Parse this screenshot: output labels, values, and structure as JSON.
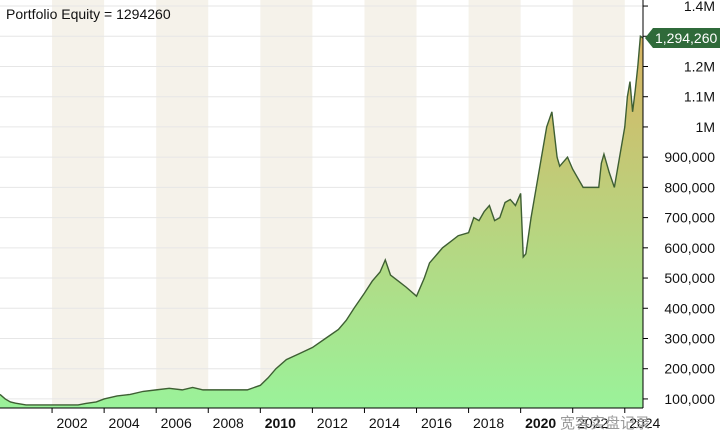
{
  "chart_data": {
    "type": "area",
    "title": "Portfolio Equity = 1294260",
    "last_value_label": "1,294,260",
    "x_ticks": [
      "2002",
      "2004",
      "2006",
      "2008",
      "2010",
      "2012",
      "2014",
      "2016",
      "2018",
      "2020",
      "2022",
      "2024"
    ],
    "x_ticks_bold": [
      "2010",
      "2020"
    ],
    "y_tick_labels": [
      {
        "value": 1400000,
        "label": "1.4M"
      },
      {
        "value": 1300000,
        "label": "1.3M"
      },
      {
        "value": 1200000,
        "label": "1.2M"
      },
      {
        "value": 1100000,
        "label": "1.1M"
      },
      {
        "value": 1000000,
        "label": "1M"
      },
      {
        "value": 900000,
        "label": "900,000"
      },
      {
        "value": 800000,
        "label": "800,000"
      },
      {
        "value": 700000,
        "label": "700,000"
      },
      {
        "value": 600000,
        "label": "600,000"
      },
      {
        "value": 500000,
        "label": "500,000"
      },
      {
        "value": 400000,
        "label": "400,000"
      },
      {
        "value": 300000,
        "label": "300,000"
      },
      {
        "value": 200000,
        "label": "200,000"
      },
      {
        "value": 100000,
        "label": "100,000"
      }
    ],
    "ylim": [
      70000,
      1420000
    ],
    "xlim": [
      2000.0,
      2024.7
    ],
    "series": [
      {
        "x": [
          2000.0,
          2000.2,
          2000.4,
          2000.6,
          2001.0,
          2002.0,
          2003.0,
          2003.3,
          2003.7,
          2004.0,
          2004.5,
          2005.0,
          2005.5,
          2006.0,
          2006.5,
          2007.0,
          2007.4,
          2007.8,
          2008.5,
          2009.0,
          2009.5,
          2010.0,
          2010.3,
          2010.6,
          2011.0,
          2011.5,
          2012.0,
          2012.5,
          2013.0,
          2013.3,
          2013.6,
          2014.0,
          2014.3,
          2014.6,
          2014.8,
          2015.0,
          2015.3,
          2015.6,
          2016.0,
          2016.3,
          2016.5,
          2016.8,
          2017.0,
          2017.3,
          2017.6,
          2018.0,
          2018.2,
          2018.4,
          2018.6,
          2018.8,
          2019.0,
          2019.2,
          2019.4,
          2019.6,
          2019.8,
          2020.0,
          2020.1,
          2020.2,
          2020.4,
          2020.6,
          2020.8,
          2021.0,
          2021.2,
          2021.4,
          2021.5,
          2021.6,
          2021.8,
          2022.0,
          2022.4,
          2022.8,
          2023.0,
          2023.1,
          2023.2,
          2023.4,
          2023.6,
          2023.8,
          2024.0,
          2024.1,
          2024.2,
          2024.3,
          2024.4,
          2024.5,
          2024.6,
          2024.7
        ],
        "values": [
          115000,
          100000,
          90000,
          86000,
          80000,
          80000,
          80000,
          85000,
          90000,
          100000,
          110000,
          115000,
          125000,
          130000,
          135000,
          130000,
          138000,
          130000,
          130000,
          130000,
          130000,
          145000,
          170000,
          200000,
          230000,
          250000,
          270000,
          300000,
          330000,
          360000,
          400000,
          450000,
          490000,
          520000,
          560000,
          510000,
          490000,
          470000,
          440000,
          500000,
          550000,
          580000,
          600000,
          620000,
          640000,
          650000,
          700000,
          690000,
          720000,
          740000,
          690000,
          700000,
          750000,
          760000,
          740000,
          780000,
          570000,
          580000,
          700000,
          800000,
          900000,
          1000000,
          1050000,
          900000,
          870000,
          880000,
          900000,
          860000,
          800000,
          800000,
          800000,
          880000,
          910000,
          850000,
          800000,
          900000,
          1000000,
          1100000,
          1150000,
          1050000,
          1120000,
          1200000,
          1300000,
          1294260
        ]
      }
    ],
    "line_color": "#3e5f33",
    "fill_top_color": "#d8b463",
    "fill_bottom_color": "#9af29a",
    "last_value_box_color": "#2f6a3a",
    "background_band_color": "#f5f2ea",
    "watermark": "宽客实盘记录"
  }
}
